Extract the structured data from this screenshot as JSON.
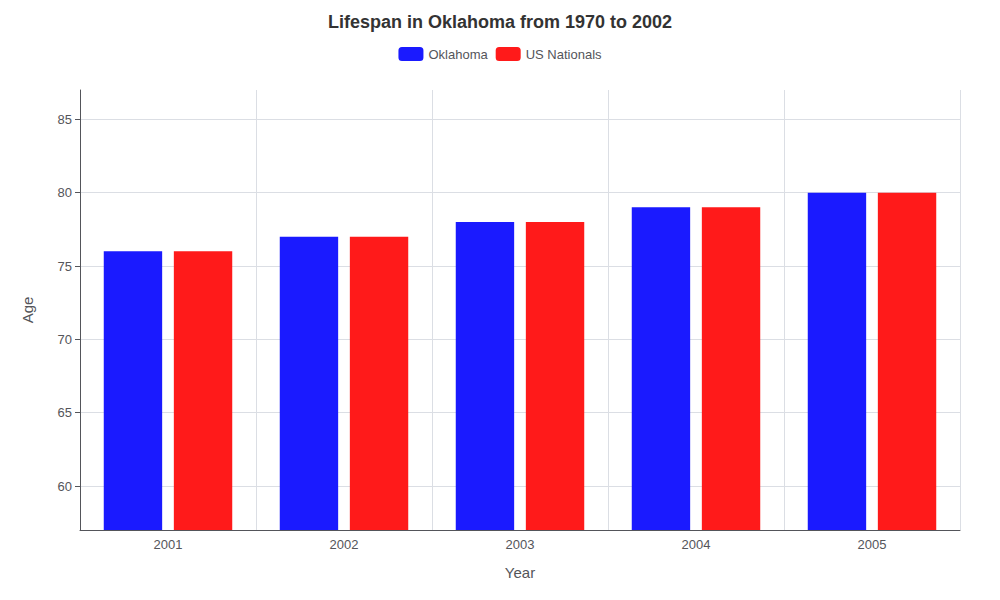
{
  "chart_data": {
    "type": "bar",
    "title": "Lifespan in Oklahoma from 1970 to 2002",
    "x_label": "Year",
    "y_label": "Age",
    "categories": [
      "2001",
      "2002",
      "2003",
      "2004",
      "2005"
    ],
    "series": [
      {
        "name": "Oklahoma",
        "color": "#1a1aff",
        "values": [
          76,
          77,
          78,
          79,
          80
        ]
      },
      {
        "name": "US Nationals",
        "color": "#ff1a1a",
        "values": [
          76,
          77,
          78,
          79,
          80
        ]
      }
    ],
    "ylim": [
      57,
      87
    ],
    "yticks": [
      60,
      65,
      70,
      75,
      80,
      85
    ],
    "grid": true,
    "legend": "top"
  }
}
